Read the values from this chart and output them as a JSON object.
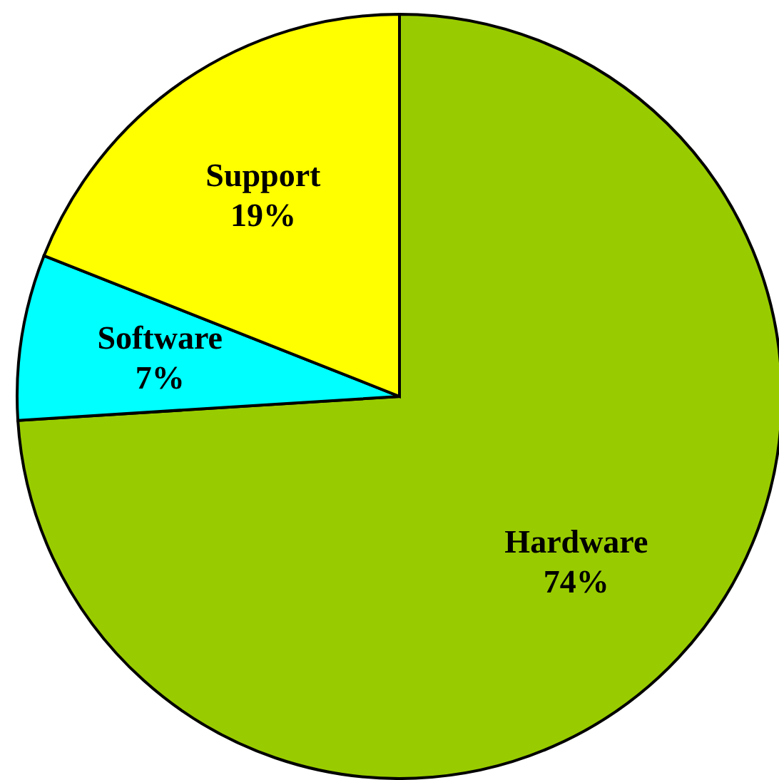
{
  "chart_data": {
    "type": "pie",
    "categories": [
      "Hardware",
      "Software",
      "Support"
    ],
    "values": [
      74,
      7,
      19
    ],
    "colors": [
      "#99cc00",
      "#00ffff",
      "#ffff00"
    ],
    "value_labels": [
      "74%",
      "7%",
      "19%"
    ]
  }
}
